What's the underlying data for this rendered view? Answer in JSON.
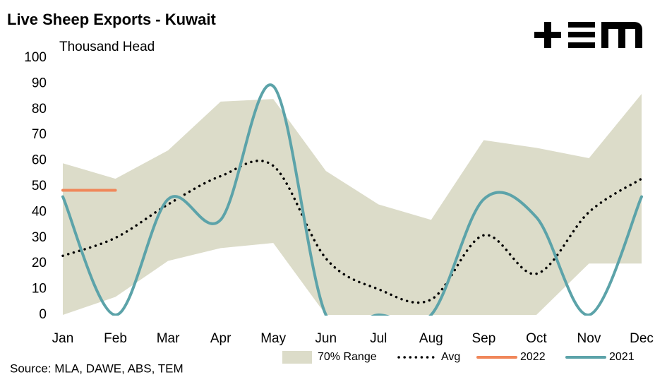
{
  "chart_data": {
    "type": "line",
    "title": "Live Sheep Exports - Kuwait",
    "y_label": "Thousand Head",
    "source": "Source: MLA, DAWE, ABS, TEM",
    "categories": [
      "Jan",
      "Feb",
      "Mar",
      "Apr",
      "May",
      "Jun",
      "Jul",
      "Aug",
      "Sep",
      "Oct",
      "Nov",
      "Dec"
    ],
    "ylim": [
      0,
      100
    ],
    "yticks": [
      0,
      10,
      20,
      30,
      40,
      50,
      60,
      70,
      80,
      90,
      100
    ],
    "grid": false,
    "legend": "bottom",
    "series": [
      {
        "name": "70% Range",
        "color": "#dcdcc9",
        "style": "range",
        "upper": [
          59,
          53,
          64,
          83,
          84,
          56,
          43,
          37,
          68,
          65,
          61,
          86
        ],
        "lower": [
          0,
          7,
          21,
          26,
          28,
          0,
          0,
          0,
          0,
          0,
          20,
          20
        ]
      },
      {
        "name": "Avg",
        "color": "#000000",
        "style": "dotted",
        "values": [
          23,
          30,
          43,
          54,
          58,
          22,
          10,
          6,
          31,
          16,
          40,
          53
        ]
      },
      {
        "name": "2022",
        "color": "#f0875a",
        "style": "solid",
        "values": [
          48.5,
          48.5,
          null,
          null,
          null,
          null,
          null,
          null,
          null,
          null,
          null,
          null
        ]
      },
      {
        "name": "2021",
        "color": "#5ca3a9",
        "style": "solid",
        "values": [
          46,
          0,
          45,
          37,
          89,
          0,
          0,
          0,
          45,
          38,
          0,
          46
        ]
      }
    ]
  }
}
